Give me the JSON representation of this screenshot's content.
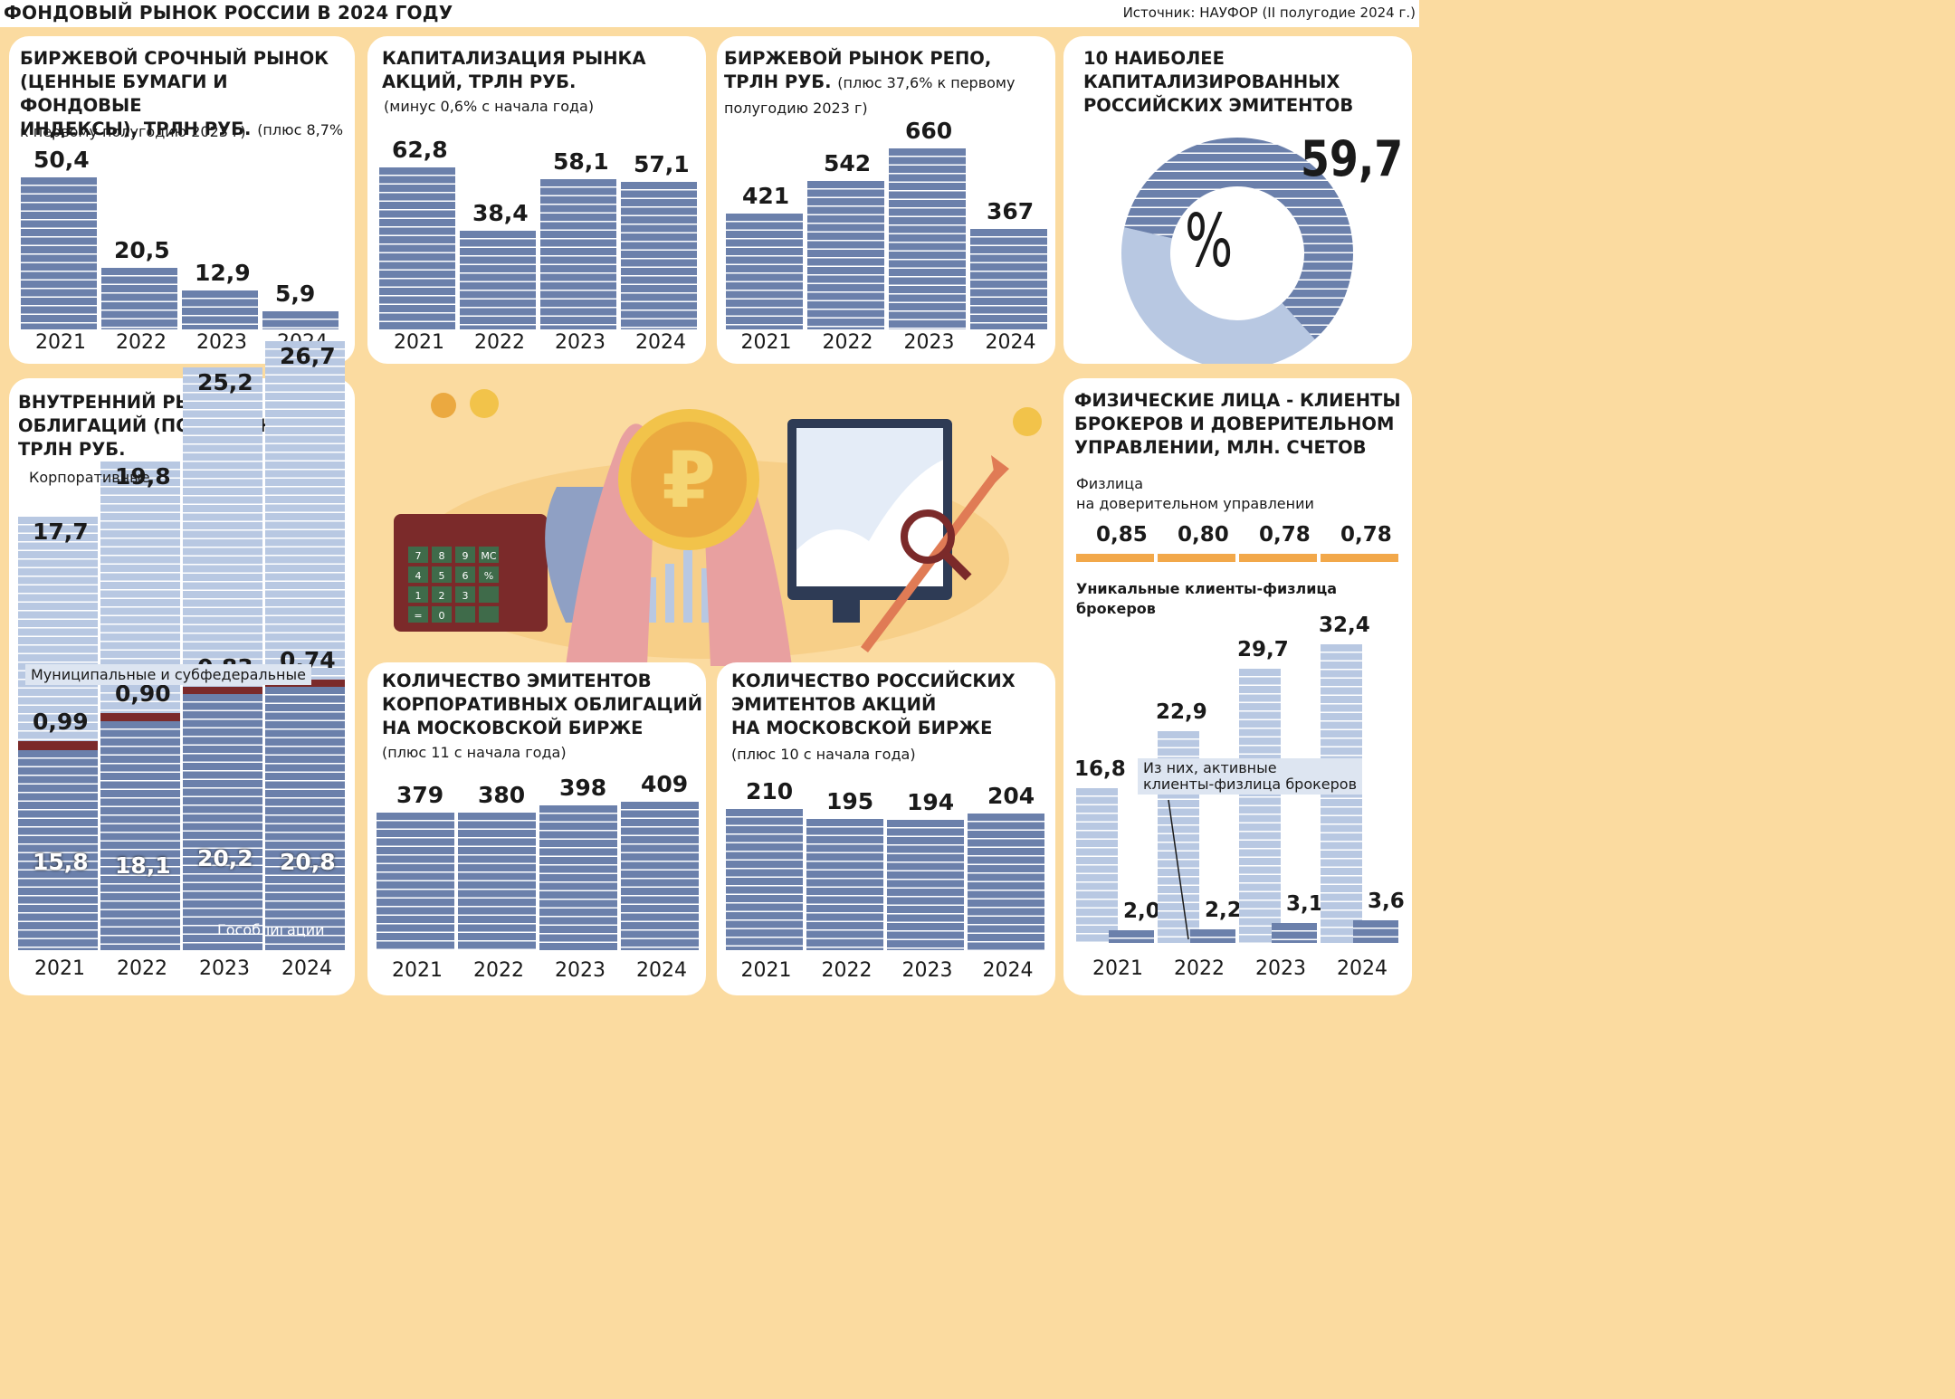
{
  "header": {
    "title": "ФОНДОВЫЙ РЫНОК РОССИИ В 2024 ГОДУ",
    "source": "Источник: НАУФОР (II полугодие 2024 г.)"
  },
  "colors": {
    "background": "#fbdba0",
    "bar_dark": "#6b80ab",
    "bar_light": "#b8c8e2",
    "municipal": "#7b2a2a",
    "orange": "#f2a84a"
  },
  "chart_data": [
    {
      "id": "derivatives",
      "type": "bar",
      "title_lines": [
        "БИРЖЕВОЙ СРОЧНЫЙ РЫНОК",
        "(ЦЕННЫЕ БУМАГИ И ФОНДОВЫЕ",
        "ИНДЕКСЫ), ТРЛН РУБ."
      ],
      "note_inline": "(плюс 8,7%",
      "note_line": "к первому полугодию 2023 г)",
      "categories": [
        "2021",
        "2022",
        "2023",
        "2024"
      ],
      "values": [
        50.4,
        20.5,
        12.9,
        5.9
      ],
      "labels": [
        "50,4",
        "20,5",
        "12,9",
        "5,9"
      ]
    },
    {
      "id": "capitalization",
      "type": "bar",
      "title_lines": [
        "КАПИТАЛИЗАЦИЯ РЫНКА",
        "АКЦИЙ, ТРЛН РУБ."
      ],
      "note_line": "(минус 0,6% с начала года)",
      "categories": [
        "2021",
        "2022",
        "2023",
        "2024"
      ],
      "values": [
        62.8,
        38.4,
        58.1,
        57.1
      ],
      "labels": [
        "62,8",
        "38,4",
        "58,1",
        "57,1"
      ]
    },
    {
      "id": "repo",
      "type": "bar",
      "title_lines": [
        "БИРЖЕВОЙ РЫНОК РЕПО,",
        "ТРЛН РУБ."
      ],
      "note_inline": "(плюс 37,6% к первому",
      "note_line": "полугодию 2023 г)",
      "categories": [
        "2021",
        "2022",
        "2023",
        "2024"
      ],
      "values": [
        421,
        542,
        660,
        367
      ],
      "labels": [
        "421",
        "542",
        "660",
        "367"
      ]
    },
    {
      "id": "top10",
      "type": "pie",
      "title_lines": [
        "10 НАИБОЛЕЕ",
        "КАПИТАЛИЗИРОВАННЫХ",
        "РОССИЙСКИХ ЭМИТЕНТОВ"
      ],
      "value": 59.7,
      "value_label": "59,7",
      "unit": "%"
    },
    {
      "id": "bonds",
      "type": "bar",
      "title_lines": [
        "ВНУТРЕННИЙ РЫНОК",
        "ОБЛИГАЦИЙ (ПО НОМИНАЛУ),",
        "ТРЛН РУБ."
      ],
      "categories": [
        "2021",
        "2022",
        "2023",
        "2024"
      ],
      "series": [
        {
          "name": "Гособлигации",
          "values": [
            15.8,
            18.1,
            20.2,
            20.8
          ],
          "labels": [
            "15,8",
            "18,1",
            "20,2",
            "20,8"
          ]
        },
        {
          "name": "Муниципальные и субфедеральные",
          "values": [
            0.99,
            0.9,
            0.83,
            0.74
          ],
          "labels": [
            "0,99",
            "0,90",
            "0,83",
            "0,74"
          ]
        },
        {
          "name": "Корпоративные",
          "values": [
            17.7,
            19.8,
            25.2,
            26.7
          ],
          "labels": [
            "17,7",
            "19,8",
            "25,2",
            "26,7"
          ]
        }
      ]
    },
    {
      "id": "bond_issuers",
      "type": "bar",
      "title_lines": [
        "КОЛИЧЕСТВО ЭМИТЕНТОВ",
        "КОРПОРАТИВНЫХ ОБЛИГАЦИЙ",
        "НА МОСКОВСКОЙ БИРЖЕ"
      ],
      "note_line": "(плюс 11 с начала года)",
      "categories": [
        "2021",
        "2022",
        "2023",
        "2024"
      ],
      "values": [
        379,
        380,
        398,
        409
      ],
      "labels": [
        "379",
        "380",
        "398",
        "409"
      ]
    },
    {
      "id": "share_issuers",
      "type": "bar",
      "title_lines": [
        "КОЛИЧЕСТВО РОССИЙСКИХ",
        "ЭМИТЕНТОВ АКЦИЙ",
        "НА МОСКОВСКОЙ БИРЖЕ"
      ],
      "note_line": "(плюс 10 с начала года)",
      "categories": [
        "2021",
        "2022",
        "2023",
        "2024"
      ],
      "values": [
        210,
        195,
        194,
        204
      ],
      "labels": [
        "210",
        "195",
        "194",
        "204"
      ]
    },
    {
      "id": "individuals",
      "type": "bar",
      "title_lines": [
        "ФИЗИЧЕСКИЕ ЛИЦА - КЛИЕНТЫ",
        "БРОКЕРОВ И ДОВЕРИТЕЛЬНОМ",
        "УПРАВЛЕНИИ, МЛН. СЧЕТОВ"
      ],
      "categories": [
        "2021",
        "2022",
        "2023",
        "2024"
      ],
      "trust_label_lines": [
        "Физлица",
        "на доверительном управлении"
      ],
      "trust_values": [
        0.85,
        0.8,
        0.78,
        0.78
      ],
      "trust_labels": [
        "0,85",
        "0,80",
        "0,78",
        "0,78"
      ],
      "unique_label_lines": [
        "Уникальные клиенты-физлица",
        "брокеров"
      ],
      "series": [
        {
          "name": "Уникальные клиенты-физлица брокеров",
          "values": [
            16.8,
            22.9,
            29.7,
            32.4
          ],
          "labels": [
            "16,8",
            "22,9",
            "29,7",
            "32,4"
          ]
        },
        {
          "name": "Из них, активные клиенты-физлица брокеров",
          "values": [
            2.0,
            2.2,
            3.1,
            3.6
          ],
          "labels": [
            "2,0",
            "2,2",
            "3,1",
            "3,6"
          ]
        }
      ],
      "active_label_lines": [
        "Из них, активные",
        "клиенты-физлица брокеров"
      ]
    }
  ],
  "illustration": {
    "currency_symbol": "₽",
    "keypad": [
      "7",
      "8",
      "9",
      "MC",
      "4",
      "5",
      "6",
      "%",
      "1",
      "2",
      "3",
      "",
      "=",
      "0",
      "",
      ""
    ]
  }
}
